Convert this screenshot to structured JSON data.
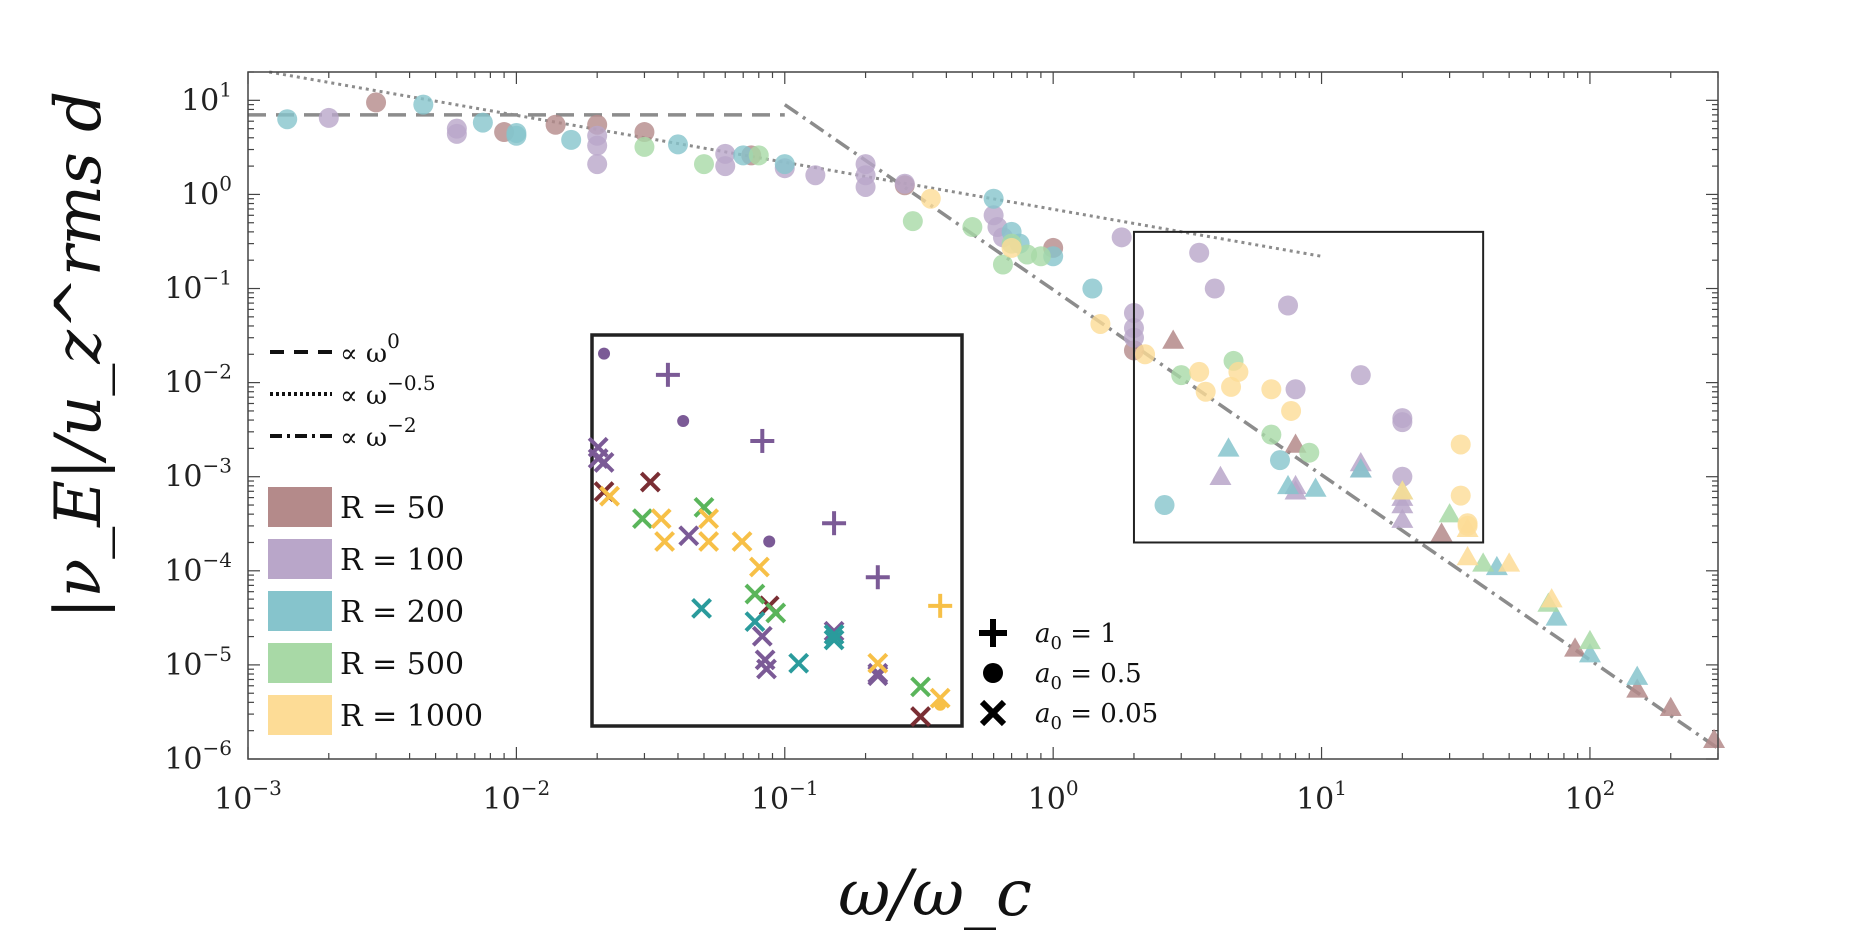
{
  "chart_data": {
    "type": "scatter",
    "xscale": "log",
    "yscale": "log",
    "xlim": [
      0.001,
      300
    ],
    "ylim": [
      1e-06,
      20
    ],
    "xlabel": "ω/ω_c",
    "ylabel": "|ν_E|/u_z^rms d",
    "x_ticks": [
      {
        "base": "10",
        "exp": "−3",
        "value": 0.001
      },
      {
        "base": "10",
        "exp": "−2",
        "value": 0.01
      },
      {
        "base": "10",
        "exp": "−1",
        "value": 0.1
      },
      {
        "base": "10",
        "exp": "0",
        "value": 1
      },
      {
        "base": "10",
        "exp": "1",
        "value": 10
      },
      {
        "base": "10",
        "exp": "2",
        "value": 100
      }
    ],
    "y_ticks": [
      {
        "base": "10",
        "exp": "1",
        "value": 10
      },
      {
        "base": "10",
        "exp": "0",
        "value": 1
      },
      {
        "base": "10",
        "exp": "−1",
        "value": 0.1
      },
      {
        "base": "10",
        "exp": "−2",
        "value": 0.01
      },
      {
        "base": "10",
        "exp": "−3",
        "value": 0.001
      },
      {
        "base": "10",
        "exp": "−4",
        "value": 0.0001
      },
      {
        "base": "10",
        "exp": "−5",
        "value": 1e-05
      },
      {
        "base": "10",
        "exp": "−6",
        "value": 1e-06
      }
    ],
    "colors": {
      "R50": "#b48a8a",
      "R100": "#b9a6c9",
      "R200": "#86c4cc",
      "R500": "#a8d9a6",
      "R1000": "#fddc96",
      "inset_R50": "#7a2e34",
      "inset_R100": "#7b5a96",
      "inset_R200": "#2a9b9c",
      "inset_R500": "#5ab55b",
      "inset_R1000": "#f7c047"
    },
    "reference_lines": [
      {
        "name": "slope 0",
        "style": "dashed",
        "points": [
          [
            0.001,
            7
          ],
          [
            0.1,
            7
          ]
        ]
      },
      {
        "name": "slope -0.5",
        "style": "dotted",
        "points": [
          [
            0.0012,
            20
          ],
          [
            10,
            0.22
          ]
        ]
      },
      {
        "name": "slope -2",
        "style": "dashdot",
        "points": [
          [
            0.1,
            9
          ],
          [
            300,
            1.3e-06
          ]
        ]
      }
    ],
    "series": [
      {
        "name": "R = 50",
        "color_key": "R50",
        "points": [
          [
            0.003,
            9.5
          ],
          [
            0.009,
            4.6
          ],
          [
            0.014,
            5.5
          ],
          [
            0.02,
            5.5
          ],
          [
            0.03,
            4.6
          ],
          [
            0.075,
            2.6
          ],
          [
            0.28,
            1.25
          ],
          [
            1.0,
            0.27
          ],
          [
            2.0,
            0.022
          ],
          [
            2.8,
            0.028,
            "tri"
          ],
          [
            8,
            0.0022,
            "tri"
          ],
          [
            28,
            0.00025,
            "tri"
          ],
          [
            88,
            1.5e-05,
            "tri"
          ],
          [
            150,
            5.5e-06,
            "tri"
          ],
          [
            200,
            3.5e-06,
            "tri"
          ],
          [
            290,
            1.6e-06,
            "tri"
          ]
        ]
      },
      {
        "name": "R = 100",
        "color_key": "R100",
        "points": [
          [
            0.002,
            6.5
          ],
          [
            0.006,
            5.0
          ],
          [
            0.006,
            4.4
          ],
          [
            0.02,
            4.2
          ],
          [
            0.02,
            3.3
          ],
          [
            0.02,
            2.1
          ],
          [
            0.06,
            2.7
          ],
          [
            0.06,
            2.0
          ],
          [
            0.1,
            1.9
          ],
          [
            0.13,
            1.6
          ],
          [
            0.2,
            2.1
          ],
          [
            0.2,
            1.6
          ],
          [
            0.2,
            1.2
          ],
          [
            0.28,
            1.3
          ],
          [
            0.6,
            0.6
          ],
          [
            0.62,
            0.45
          ],
          [
            0.65,
            0.35
          ],
          [
            1.8,
            0.35
          ],
          [
            2.0,
            0.055
          ],
          [
            2.0,
            0.038
          ],
          [
            2.0,
            0.03
          ],
          [
            3.5,
            0.24
          ],
          [
            4.0,
            0.1
          ],
          [
            7.5,
            0.066
          ],
          [
            8,
            0.0085
          ],
          [
            14,
            0.012
          ],
          [
            20,
            0.0042
          ],
          [
            20,
            0.0038
          ],
          [
            20,
            0.001
          ],
          [
            4.2,
            0.001,
            "tri"
          ],
          [
            8,
            0.0008,
            "tri"
          ],
          [
            8,
            0.0007,
            "tri"
          ],
          [
            14,
            0.0014,
            "tri"
          ],
          [
            14,
            0.0012,
            "tri"
          ],
          [
            20,
            0.0006,
            "tri"
          ],
          [
            20,
            0.0005,
            "tri"
          ],
          [
            20,
            0.00035,
            "tri"
          ]
        ]
      },
      {
        "name": "R = 200",
        "color_key": "R200",
        "points": [
          [
            0.0014,
            6.3
          ],
          [
            0.0045,
            9.0
          ],
          [
            0.0075,
            5.8
          ],
          [
            0.01,
            4.2
          ],
          [
            0.01,
            4.5
          ],
          [
            0.016,
            3.8
          ],
          [
            0.04,
            3.4
          ],
          [
            0.07,
            2.6
          ],
          [
            0.1,
            2.1
          ],
          [
            0.6,
            0.9
          ],
          [
            0.7,
            0.4
          ],
          [
            0.75,
            0.3
          ],
          [
            1.0,
            0.22
          ],
          [
            1.4,
            0.1
          ],
          [
            7,
            0.0015
          ],
          [
            2.6,
            0.0005
          ],
          [
            4.5,
            0.002,
            "tri"
          ],
          [
            7.5,
            0.0008,
            "tri"
          ],
          [
            9.5,
            0.00075,
            "tri"
          ],
          [
            14,
            0.0012,
            "tri"
          ],
          [
            45,
            0.00011,
            "tri"
          ],
          [
            75,
            3.2e-05,
            "tri"
          ],
          [
            100,
            1.3e-05,
            "tri"
          ],
          [
            150,
            7.5e-06,
            "tri"
          ]
        ]
      },
      {
        "name": "R = 500",
        "color_key": "R500",
        "points": [
          [
            0.03,
            3.2
          ],
          [
            0.05,
            2.1
          ],
          [
            0.08,
            2.6
          ],
          [
            0.3,
            0.52
          ],
          [
            0.5,
            0.45
          ],
          [
            0.7,
            0.3
          ],
          [
            0.8,
            0.23
          ],
          [
            0.9,
            0.22
          ],
          [
            0.65,
            0.18
          ],
          [
            3,
            0.012
          ],
          [
            4.7,
            0.017
          ],
          [
            6.5,
            0.0028
          ],
          [
            9,
            0.0018
          ],
          [
            20,
            0.0007,
            "tri"
          ],
          [
            30,
            0.0004,
            "tri"
          ],
          [
            40,
            0.00012,
            "tri"
          ],
          [
            70,
            4.5e-05,
            "tri"
          ],
          [
            100,
            1.8e-05,
            "tri"
          ]
        ]
      },
      {
        "name": "R = 1000",
        "color_key": "R1000",
        "points": [
          [
            0.35,
            0.9
          ],
          [
            0.7,
            0.27
          ],
          [
            1.5,
            0.042
          ],
          [
            2.2,
            0.02
          ],
          [
            3.5,
            0.013
          ],
          [
            3.7,
            0.008
          ],
          [
            4.6,
            0.009
          ],
          [
            4.9,
            0.013
          ],
          [
            6.5,
            0.0085
          ],
          [
            7.7,
            0.005
          ],
          [
            33,
            0.0022
          ],
          [
            33,
            0.00063
          ],
          [
            35,
            0.00032
          ],
          [
            35,
            0.0003
          ],
          [
            20,
            0.0007,
            "tri"
          ],
          [
            35,
            0.00028,
            "tri"
          ],
          [
            35,
            0.00014,
            "tri"
          ],
          [
            50,
            0.00012,
            "tri"
          ],
          [
            72,
            5e-05,
            "tri"
          ]
        ]
      }
    ],
    "inset_bounds": {
      "ax_xlim": [
        2.0,
        40.0
      ],
      "ax_ylim": [
        0.0002,
        0.4
      ]
    },
    "inset_series": [
      {
        "name": "R = 50 inset",
        "color_key": "inset_R50",
        "points": [
          [
            0.03,
            0.00115,
            "x"
          ],
          [
            0.085,
            4.8e-05,
            "x"
          ],
          [
            0.32,
            2.8e-06,
            "x"
          ],
          [
            0.02,
            0.0009,
            "x"
          ]
        ]
      },
      {
        "name": "R = 100 inset",
        "color_key": "inset_R100",
        "points": [
          [
            0.035,
            0.018,
            "+"
          ],
          [
            0.08,
            0.0033,
            "+"
          ],
          [
            0.15,
            0.0004,
            "+"
          ],
          [
            0.22,
            0.0001,
            "+"
          ],
          [
            0.02,
            0.031,
            "o"
          ],
          [
            0.04,
            0.0055,
            "o"
          ],
          [
            0.085,
            0.00025,
            "o"
          ],
          [
            0.019,
            0.0028,
            "x"
          ],
          [
            0.019,
            0.0021,
            "x"
          ],
          [
            0.02,
            0.0019,
            "x"
          ],
          [
            0.042,
            0.00029,
            "x"
          ],
          [
            0.08,
            2.2e-05,
            "x"
          ],
          [
            0.082,
            1.2e-05,
            "x"
          ],
          [
            0.083,
            9.5e-06,
            "x"
          ],
          [
            0.15,
            2.5e-05,
            "x"
          ],
          [
            0.22,
            8e-06,
            "x"
          ],
          [
            0.22,
            8.5e-06,
            "x"
          ]
        ]
      },
      {
        "name": "R = 200 inset",
        "color_key": "inset_R200",
        "points": [
          [
            0.047,
            4.5e-05,
            "x"
          ],
          [
            0.075,
            3.2e-05,
            "x"
          ],
          [
            0.11,
            1.1e-05,
            "x"
          ],
          [
            0.15,
            2.3e-05,
            "x"
          ],
          [
            0.15,
            2e-05,
            "x"
          ]
        ]
      },
      {
        "name": "R = 500 inset",
        "color_key": "inset_R500",
        "points": [
          [
            0.028,
            0.00045,
            "x"
          ],
          [
            0.048,
            0.0006,
            "x"
          ],
          [
            0.075,
            6.5e-05,
            "x"
          ],
          [
            0.09,
            4e-05,
            "x"
          ],
          [
            0.32,
            6e-06,
            "x"
          ]
        ]
      },
      {
        "name": "R = 1000 inset",
        "color_key": "inset_R1000",
        "points": [
          [
            0.021,
            0.0008,
            "x"
          ],
          [
            0.033,
            0.00045,
            "x"
          ],
          [
            0.034,
            0.00025,
            "x"
          ],
          [
            0.05,
            0.00045,
            "x"
          ],
          [
            0.05,
            0.00025,
            "x"
          ],
          [
            0.067,
            0.00025,
            "x"
          ],
          [
            0.078,
            0.00013,
            "x"
          ],
          [
            0.22,
            1.1e-05,
            "x"
          ],
          [
            0.38,
            4.8e-05,
            "+"
          ],
          [
            0.38,
            4.5e-06,
            "x"
          ],
          [
            0.38,
            3.8e-06,
            "o"
          ]
        ]
      }
    ],
    "legend_lines": [
      {
        "label": "∝ ω",
        "sup": "0",
        "style": "dashed"
      },
      {
        "label": "∝ ω",
        "sup": "−0.5",
        "style": "dotted"
      },
      {
        "label": "∝ ω",
        "sup": "−2",
        "style": "dashdot"
      }
    ],
    "legend_R": [
      {
        "label": "R = 50",
        "color_key": "R50"
      },
      {
        "label": "R = 100",
        "color_key": "R100"
      },
      {
        "label": "R = 200",
        "color_key": "R200"
      },
      {
        "label": "R = 500",
        "color_key": "R500"
      },
      {
        "label": "R = 1000",
        "color_key": "R1000"
      }
    ],
    "legend_markers": [
      {
        "symbol": "plus",
        "label": "a",
        "sub": "0",
        "value": " = 1"
      },
      {
        "symbol": "dot",
        "label": "a",
        "sub": "0",
        "value": " = 0.5"
      },
      {
        "symbol": "cross",
        "label": "a",
        "sub": "0",
        "value": " = 0.05"
      }
    ]
  }
}
